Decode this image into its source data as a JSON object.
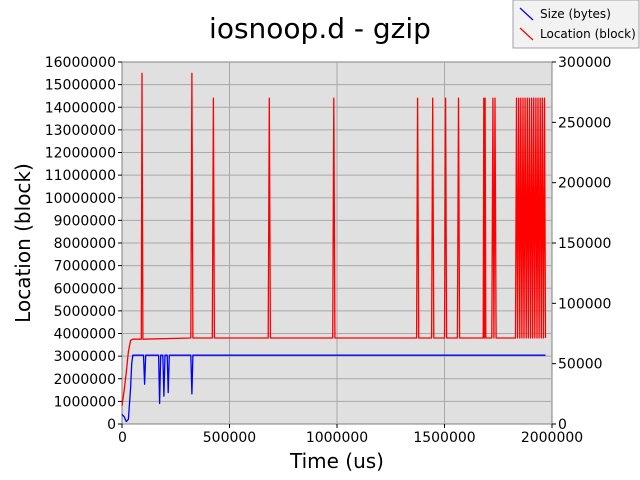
{
  "chart_data": {
    "type": "line",
    "title": "iosnoop.d - gzip",
    "xlabel": "Time (us)",
    "ylabel": "Location (block)",
    "xlim": [
      0,
      2000000
    ],
    "ylim_left": [
      0,
      16000000
    ],
    "ylim_right": [
      0,
      300000
    ],
    "x_ticks": [
      "0",
      "500000",
      "1000000",
      "1500000",
      "2000000"
    ],
    "y_ticks_left": [
      "0",
      "1000000",
      "2000000",
      "3000000",
      "4000000",
      "5000000",
      "6000000",
      "7000000",
      "8000000",
      "9000000",
      "10000000",
      "11000000",
      "12000000",
      "13000000",
      "14000000",
      "15000000",
      "16000000"
    ],
    "y_ticks_right": [
      "0",
      "50000",
      "100000",
      "150000",
      "200000",
      "250000",
      "300000"
    ],
    "grid": true,
    "legend_position": "top-right",
    "colors": {
      "size": "#0000ff",
      "location": "#ff0000",
      "plot_bg": "#e0e0e0"
    },
    "series": [
      {
        "name": "Size (bytes)",
        "axis": "right",
        "x": [
          0,
          10000,
          20000,
          30000,
          40000,
          45000,
          50000,
          100000,
          105000,
          110000,
          170000,
          175000,
          180000,
          190000,
          195000,
          200000,
          210000,
          215000,
          220000,
          320000,
          325000,
          330000,
          1970000
        ],
        "y": [
          8000,
          6000,
          2000,
          4000,
          30000,
          50000,
          57000,
          57000,
          33000,
          57000,
          57000,
          17000,
          57000,
          57000,
          23000,
          57000,
          57000,
          26000,
          57000,
          57000,
          25000,
          57000,
          57000
        ]
      },
      {
        "name": "Location (block)",
        "axis": "left",
        "x": [
          0,
          10000,
          20000,
          30000,
          40000,
          50000,
          90000,
          93000,
          97000,
          320000,
          325000,
          330000,
          420000,
          425000,
          430000,
          680000,
          685000,
          690000,
          980000,
          985000,
          990000,
          1370000,
          1375000,
          1380000,
          1440000,
          1445000,
          1450000,
          1500000,
          1505000,
          1510000,
          1560000,
          1565000,
          1570000,
          1680000,
          1683000,
          1686000,
          1689000,
          1692000,
          1720000,
          1725000,
          1730000,
          1735000,
          1740000,
          1830000,
          1835000,
          1840000,
          1845000,
          1850000,
          1855000,
          1860000,
          1865000,
          1870000,
          1875000,
          1880000,
          1885000,
          1890000,
          1895000,
          1900000,
          1905000,
          1910000,
          1915000,
          1920000,
          1925000,
          1930000,
          1935000,
          1940000,
          1945000,
          1950000,
          1955000,
          1960000,
          1965000,
          1970000
        ],
        "y": [
          800000,
          1500000,
          2300000,
          3200000,
          3700000,
          3750000,
          3750000,
          15500000,
          3750000,
          3800000,
          15500000,
          3800000,
          3800000,
          14400000,
          3800000,
          3800000,
          14400000,
          3800000,
          3800000,
          14400000,
          3800000,
          3800000,
          14400000,
          3800000,
          3800000,
          14400000,
          3800000,
          3800000,
          14400000,
          3800000,
          3800000,
          14400000,
          3800000,
          3800000,
          14400000,
          3800000,
          14400000,
          3800000,
          3800000,
          14400000,
          3800000,
          14400000,
          3800000,
          3800000,
          14400000,
          3800000,
          14400000,
          3800000,
          14400000,
          3800000,
          14400000,
          3800000,
          14400000,
          3800000,
          14400000,
          3800000,
          14400000,
          3800000,
          14400000,
          3800000,
          14400000,
          3800000,
          14400000,
          3800000,
          14400000,
          3800000,
          14400000,
          3800000,
          14400000,
          3800000,
          14400000,
          3800000
        ]
      }
    ]
  }
}
